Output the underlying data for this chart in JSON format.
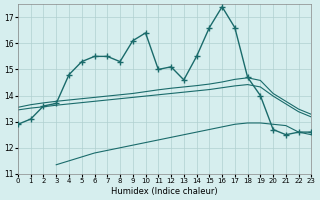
{
  "xlabel": "Humidex (Indice chaleur)",
  "bg_color": "#d6eeee",
  "line_color": "#1a6b6b",
  "grid_color": "#b0d0d0",
  "xlim": [
    0,
    23
  ],
  "ylim": [
    11,
    17.5
  ],
  "yticks": [
    11,
    12,
    13,
    14,
    15,
    16,
    17
  ],
  "xticks": [
    0,
    1,
    2,
    3,
    4,
    5,
    6,
    7,
    8,
    9,
    10,
    11,
    12,
    13,
    14,
    15,
    16,
    17,
    18,
    19,
    20,
    21,
    22,
    23
  ],
  "main_line_x": [
    0,
    1,
    2,
    3,
    4,
    5,
    6,
    7,
    8,
    9,
    10,
    11,
    12,
    13,
    14,
    15,
    16,
    17,
    18,
    19,
    20,
    21,
    22,
    23
  ],
  "main_line_y": [
    12.9,
    13.1,
    13.6,
    13.7,
    14.8,
    15.3,
    15.5,
    15.5,
    15.3,
    16.1,
    16.4,
    15.0,
    15.1,
    14.6,
    15.5,
    16.6,
    17.4,
    16.6,
    14.7,
    14.0,
    12.7,
    12.5,
    12.6,
    12.6
  ],
  "smooth1_x": [
    0,
    1,
    2,
    3,
    4,
    5,
    6,
    7,
    8,
    9,
    10,
    11,
    12,
    13,
    14,
    15,
    16,
    17,
    18,
    19,
    20,
    21,
    22,
    23
  ],
  "smooth1_y": [
    13.55,
    13.65,
    13.72,
    13.78,
    13.83,
    13.88,
    13.93,
    13.98,
    14.03,
    14.08,
    14.15,
    14.22,
    14.28,
    14.33,
    14.38,
    14.44,
    14.52,
    14.62,
    14.68,
    14.58,
    14.08,
    13.78,
    13.48,
    13.28
  ],
  "smooth2_x": [
    0,
    1,
    2,
    3,
    4,
    5,
    6,
    7,
    8,
    9,
    10,
    11,
    12,
    13,
    14,
    15,
    16,
    17,
    18,
    19,
    20,
    21,
    22,
    23
  ],
  "smooth2_y": [
    13.45,
    13.52,
    13.57,
    13.63,
    13.68,
    13.73,
    13.78,
    13.83,
    13.88,
    13.93,
    13.98,
    14.03,
    14.08,
    14.13,
    14.18,
    14.23,
    14.3,
    14.37,
    14.42,
    14.33,
    13.98,
    13.68,
    13.38,
    13.18
  ],
  "smooth3_x": [
    3,
    4,
    5,
    6,
    7,
    8,
    9,
    10,
    11,
    12,
    13,
    14,
    15,
    16,
    17,
    18,
    19,
    20,
    21,
    22,
    23
  ],
  "smooth3_y": [
    11.35,
    11.5,
    11.65,
    11.8,
    11.9,
    12.0,
    12.1,
    12.2,
    12.3,
    12.4,
    12.5,
    12.6,
    12.7,
    12.8,
    12.9,
    12.95,
    12.95,
    12.9,
    12.85,
    12.6,
    12.5
  ]
}
